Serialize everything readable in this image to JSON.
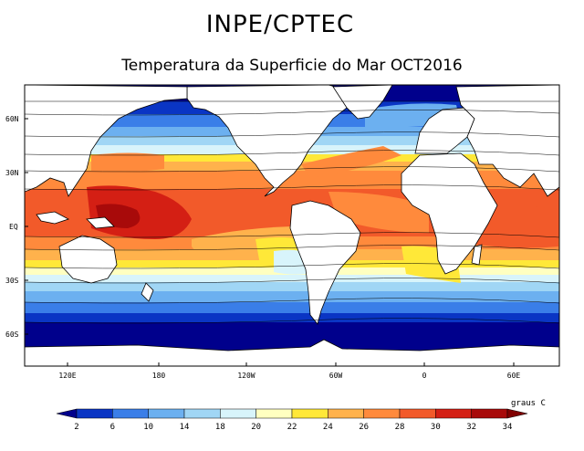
{
  "header": {
    "title": "INPE/CPTEC",
    "subtitle": "Temperatura da Superficie do Mar OCT2016"
  },
  "map": {
    "lat_ticks": [
      "60N",
      "30N",
      "EQ",
      "30S",
      "60S"
    ],
    "lon_ticks": [
      "120E",
      "180",
      "120W",
      "60W",
      "0",
      "60E"
    ]
  },
  "colorbar": {
    "unit": "graus C",
    "levels": [
      "2",
      "6",
      "10",
      "14",
      "18",
      "20",
      "22",
      "24",
      "26",
      "28",
      "30",
      "32",
      "34"
    ],
    "colors": [
      "#00008c",
      "#0a35c4",
      "#3a7ee8",
      "#6cb0f0",
      "#a0d6f5",
      "#d8f4fb",
      "#ffffc0",
      "#ffe838",
      "#ffb24c",
      "#ff8a3c",
      "#f25a2a",
      "#d41f14",
      "#a80a0a",
      "#800000"
    ]
  }
}
